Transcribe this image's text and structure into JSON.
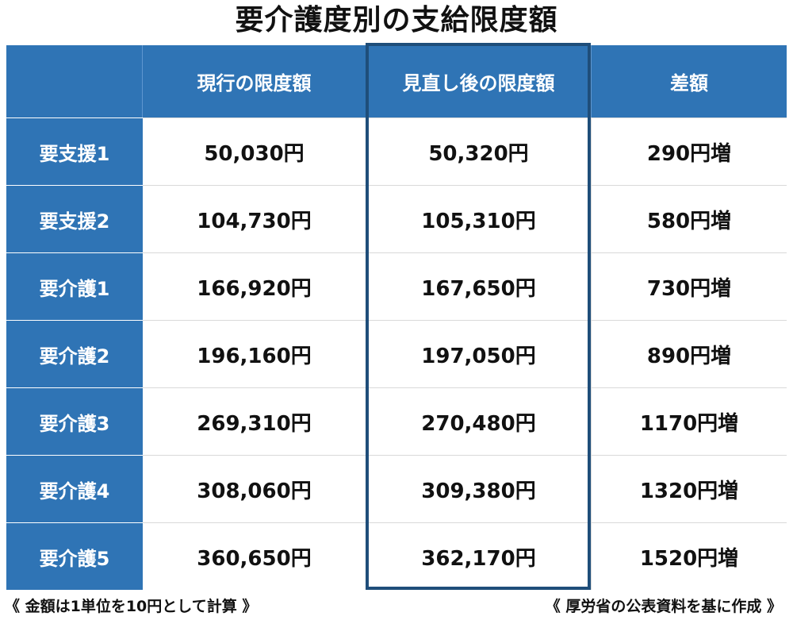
{
  "title": "要介護度別の支給限度額",
  "chart_data": {
    "type": "table",
    "columns": [
      "",
      "現行の限度額",
      "見直し後の限度額",
      "差額"
    ],
    "rows": [
      {
        "label": "要支援1",
        "current": "50,030円",
        "revised": "50,320円",
        "diff": "290円増"
      },
      {
        "label": "要支援2",
        "current": "104,730円",
        "revised": "105,310円",
        "diff": "580円増"
      },
      {
        "label": "要介護1",
        "current": "166,920円",
        "revised": "167,650円",
        "diff": "730円増"
      },
      {
        "label": "要介護2",
        "current": "196,160円",
        "revised": "197,050円",
        "diff": "890円増"
      },
      {
        "label": "要介護3",
        "current": "269,310円",
        "revised": "270,480円",
        "diff": "1170円増"
      },
      {
        "label": "要介護4",
        "current": "308,060円",
        "revised": "309,380円",
        "diff": "1320円増"
      },
      {
        "label": "要介護5",
        "current": "360,650円",
        "revised": "362,170円",
        "diff": "1520円増"
      }
    ],
    "highlighted_column": "見直し後の限度額"
  },
  "notes": {
    "left": "《 金額は1単位を10円として計算 》",
    "right": "《 厚労省の公表資料を基に作成 》"
  },
  "colors": {
    "header_bg": "#2f74b5",
    "highlight_border": "#1f4e7a",
    "cell_bg": "#ffffff"
  }
}
